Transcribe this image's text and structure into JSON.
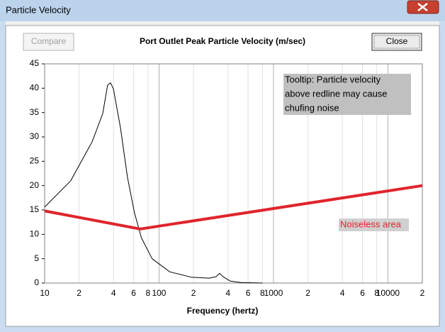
{
  "window": {
    "title": "Particle Velocity"
  },
  "buttons": [
    {
      "label": "Compare",
      "enabled": false
    },
    {
      "label": "Close",
      "enabled": true
    }
  ],
  "chart_data": {
    "type": "line",
    "title": "Port Outlet Peak Particle Velocity (m/sec)",
    "x_label": "Frequency (hertz)",
    "x_scale": "log",
    "grid": "x",
    "xlim": [
      10,
      20000
    ],
    "ylim": [
      0,
      45
    ],
    "yticks": [
      0,
      5,
      10,
      15,
      20,
      25,
      30,
      35,
      40,
      45
    ],
    "xticks": [
      10,
      {
        "value": 20,
        "label": "2"
      },
      {
        "value": 40,
        "label": "4"
      },
      {
        "value": 60,
        "label": "6"
      },
      {
        "value": 80,
        "label": "8"
      },
      100,
      {
        "value": 200,
        "label": "2"
      },
      {
        "value": 400,
        "label": "4"
      },
      {
        "value": 600,
        "label": "6"
      },
      {
        "value": 800,
        "label": "8"
      },
      1000,
      {
        "value": 2000,
        "label": "2"
      },
      {
        "value": 4000,
        "label": "4"
      },
      {
        "value": 6000,
        "label": "6"
      },
      {
        "value": 8000,
        "label": "8"
      },
      10000,
      {
        "value": 20000,
        "label": "2"
      }
    ],
    "series": [
      {
        "color": "#000000",
        "width": 1,
        "x": [
          10,
          16.9,
          26,
          32.2,
          35.5,
          37.6,
          39.9,
          46,
          53,
          61,
          70,
          87,
          124,
          192,
          273,
          314,
          339,
          363,
          420,
          520,
          800
        ],
        "values": [
          15.6,
          21,
          29,
          34.8,
          40.6,
          41.1,
          39.9,
          31.9,
          21.7,
          14.4,
          9.3,
          5,
          2.3,
          1.2,
          1,
          1.3,
          2,
          1.3,
          0.4,
          0.1,
          0
        ]
      },
      {
        "color": "#e0242c",
        "width": 4,
        "x": [
          10,
          68.5,
          20000
        ],
        "values": [
          14.8,
          11.1,
          20
        ]
      }
    ],
    "annotations": [
      {
        "lines": [
          "Tooltip: Particle velocity",
          "above redline may cause",
          "chufing noise"
        ],
        "color": "#000000",
        "background": "#c0c0c0"
      },
      {
        "lines": [
          "Noiseless area"
        ],
        "color": "#e0242c",
        "background": "#d0d0d0"
      }
    ]
  }
}
